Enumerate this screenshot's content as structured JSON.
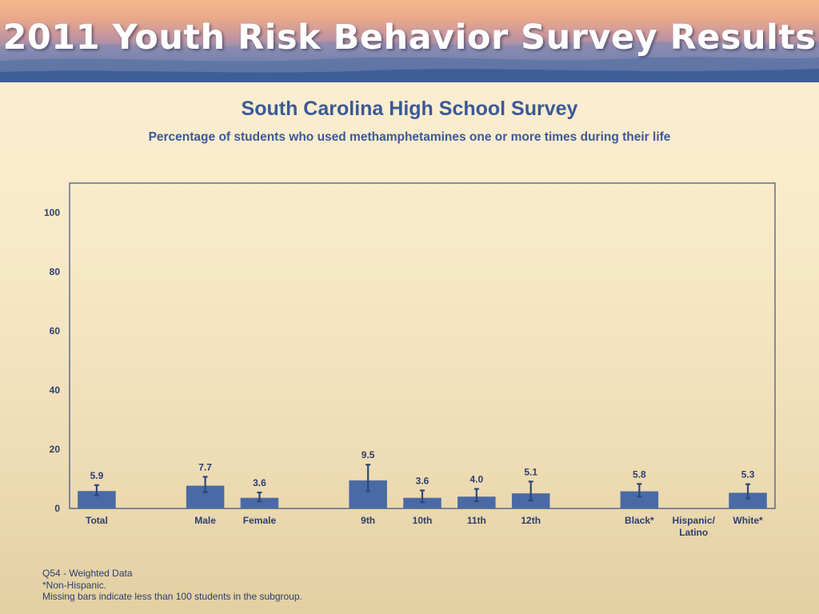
{
  "header": {
    "title": "2011 Youth Risk Behavior Survey Results"
  },
  "chart_data": {
    "type": "bar",
    "title": "South Carolina High School Survey",
    "subtitle": "Percentage of students who used methamphetamines one or more times during their life",
    "xlabel": "",
    "ylabel": "",
    "ylim": [
      0,
      110
    ],
    "yticks": [
      0,
      20,
      40,
      60,
      80,
      100
    ],
    "grid": false,
    "categories": [
      "Total",
      "",
      "Male",
      "Female",
      "",
      "9th",
      "10th",
      "11th",
      "12th",
      "",
      "Black*",
      "Hispanic/\nLatino",
      "White*"
    ],
    "values": [
      5.9,
      null,
      7.7,
      3.6,
      null,
      9.5,
      3.6,
      4.0,
      5.1,
      null,
      5.8,
      null,
      5.3
    ],
    "value_labels": [
      "5.9",
      "",
      "7.7",
      "3.6",
      "",
      "9.5",
      "3.6",
      "4.0",
      "5.1",
      "",
      "5.8",
      "",
      "5.3"
    ],
    "ci_low": [
      4.4,
      null,
      5.5,
      2.4,
      null,
      5.9,
      2.1,
      2.4,
      2.7,
      null,
      4.0,
      null,
      3.4
    ],
    "ci_high": [
      7.9,
      null,
      10.7,
      5.4,
      null,
      14.8,
      6.1,
      6.6,
      9.1,
      null,
      8.3,
      null,
      8.2
    ],
    "bar_color": "#4a6aa5",
    "error_color": "#2f4778",
    "axis_color": "#3b4f7e"
  },
  "notes": [
    "Q54 - Weighted Data",
    "*Non-Hispanic.",
    "Missing bars indicate less than 100 students in the subgroup."
  ]
}
